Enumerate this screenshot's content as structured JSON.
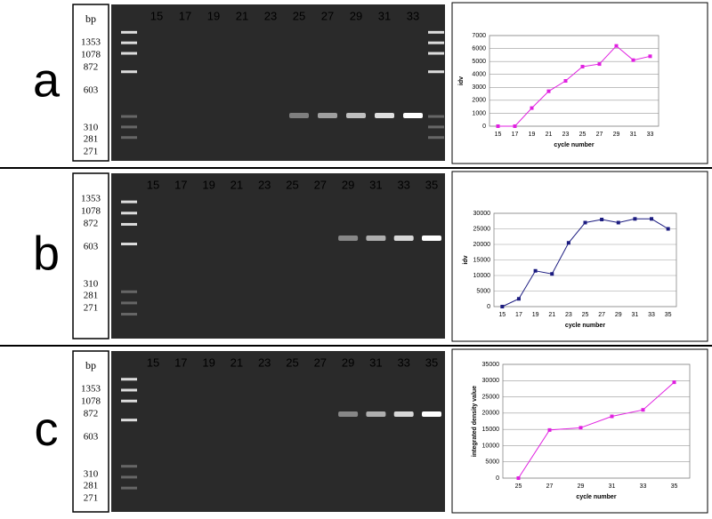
{
  "panels": [
    {
      "label": "a",
      "ladder_title": "bp",
      "ladder": [
        1353,
        1078,
        872,
        603,
        310,
        281,
        271
      ],
      "lanes": [
        15,
        17,
        19,
        21,
        23,
        25,
        27,
        29,
        31,
        33
      ]
    },
    {
      "label": "b",
      "ladder": [
        1353,
        1078,
        872,
        603,
        310,
        281,
        271
      ],
      "lanes": [
        15,
        17,
        19,
        21,
        23,
        25,
        27,
        29,
        31,
        33,
        35
      ]
    },
    {
      "label": "c",
      "ladder_title": "bp",
      "ladder": [
        1353,
        1078,
        872,
        603,
        310,
        281,
        271
      ],
      "lanes": [
        15,
        17,
        19,
        21,
        23,
        25,
        27,
        29,
        31,
        33,
        35
      ]
    }
  ],
  "chart_data": [
    {
      "type": "line",
      "x_label": "cycle number",
      "y_label": "idv",
      "color": "#e020e0",
      "categories": [
        "15",
        "17",
        "19",
        "21",
        "23",
        "25",
        "27",
        "29",
        "31",
        "33"
      ],
      "values": [
        0,
        0,
        1400,
        2700,
        3500,
        4600,
        4800,
        6200,
        5100,
        5400
      ],
      "ylim": [
        0,
        7000
      ],
      "yticks": [
        0,
        1000,
        2000,
        3000,
        4000,
        5000,
        6000,
        7000
      ],
      "grid": true
    },
    {
      "type": "line",
      "x_label": "cycle number",
      "y_label": "idv",
      "color": "#1c1c80",
      "categories": [
        "15",
        "17",
        "19",
        "21",
        "23",
        "25",
        "27",
        "29",
        "31",
        "33",
        "35"
      ],
      "values": [
        0,
        2500,
        11500,
        10500,
        20500,
        27000,
        28000,
        27000,
        28200,
        28200,
        25000
      ],
      "ylim": [
        0,
        30000
      ],
      "yticks": [
        0,
        5000,
        10000,
        15000,
        20000,
        25000,
        30000
      ],
      "grid": true
    },
    {
      "type": "line",
      "x_label": "cycle number",
      "y_label": "integrated density value",
      "color": "#e020e0",
      "categories": [
        "25",
        "27",
        "29",
        "31",
        "33",
        "35"
      ],
      "values": [
        0,
        14800,
        15500,
        19000,
        21000,
        29500
      ],
      "ylim": [
        0,
        35000
      ],
      "yticks": [
        0,
        5000,
        10000,
        15000,
        20000,
        25000,
        30000,
        35000
      ],
      "grid": true
    }
  ]
}
